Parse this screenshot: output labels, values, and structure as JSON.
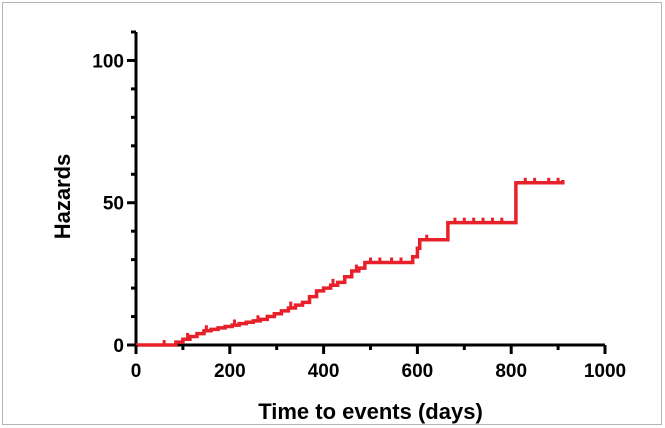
{
  "chart_data": {
    "type": "line",
    "xlabel": "Time to events (days)",
    "ylabel": "Hazards",
    "xlim": [
      0,
      1000
    ],
    "ylim": [
      0,
      110
    ],
    "x_ticks": [
      0,
      200,
      400,
      600,
      800,
      1000
    ],
    "y_ticks": [
      0,
      50,
      100
    ],
    "x_tick_labels": [
      "0",
      "200",
      "400",
      "600",
      "800",
      "1000"
    ],
    "y_tick_labels": [
      "0",
      "50",
      "100"
    ],
    "grid": false,
    "series": [
      {
        "color": "#e8202a",
        "step_points": [
          [
            0,
            0
          ],
          [
            70,
            0
          ],
          [
            85,
            1
          ],
          [
            100,
            2
          ],
          [
            115,
            3
          ],
          [
            130,
            4
          ],
          [
            145,
            5
          ],
          [
            160,
            5.5
          ],
          [
            175,
            6
          ],
          [
            190,
            6.5
          ],
          [
            205,
            7
          ],
          [
            220,
            7.5
          ],
          [
            235,
            8
          ],
          [
            250,
            8.5
          ],
          [
            265,
            9
          ],
          [
            280,
            10
          ],
          [
            295,
            11
          ],
          [
            310,
            12
          ],
          [
            325,
            13
          ],
          [
            340,
            14
          ],
          [
            355,
            15
          ],
          [
            370,
            17
          ],
          [
            385,
            19
          ],
          [
            400,
            20
          ],
          [
            415,
            21
          ],
          [
            430,
            22
          ],
          [
            445,
            24
          ],
          [
            460,
            26
          ],
          [
            475,
            27
          ],
          [
            488,
            29
          ],
          [
            580,
            29
          ],
          [
            590,
            31
          ],
          [
            600,
            34
          ],
          [
            605,
            37
          ],
          [
            660,
            37
          ],
          [
            665,
            43
          ],
          [
            810,
            43
          ],
          [
            810,
            57
          ],
          [
            910,
            57
          ],
          [
            910,
            58
          ]
        ],
        "censor_marks": [
          [
            60,
            0
          ],
          [
            110,
            2.5
          ],
          [
            150,
            5.2
          ],
          [
            210,
            7.2
          ],
          [
            260,
            8.7
          ],
          [
            330,
            13.5
          ],
          [
            420,
            21.5
          ],
          [
            470,
            26.5
          ],
          [
            500,
            29
          ],
          [
            520,
            29
          ],
          [
            545,
            29
          ],
          [
            565,
            29
          ],
          [
            620,
            37
          ],
          [
            680,
            43
          ],
          [
            700,
            43
          ],
          [
            720,
            43
          ],
          [
            740,
            43
          ],
          [
            760,
            43
          ],
          [
            780,
            43
          ],
          [
            830,
            57
          ],
          [
            850,
            57
          ],
          [
            880,
            57
          ],
          [
            900,
            57
          ]
        ]
      }
    ]
  }
}
